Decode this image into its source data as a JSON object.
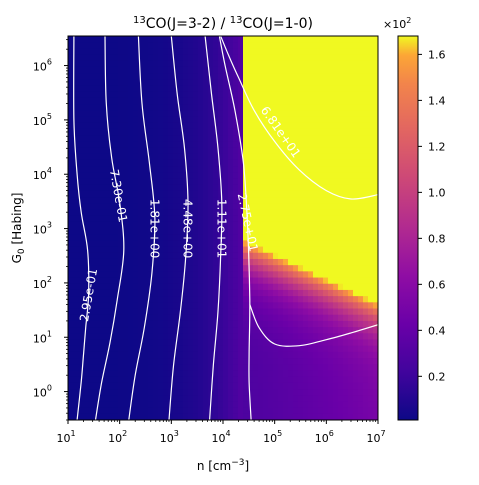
{
  "chart_data": {
    "type": "heatmap",
    "title_parts": {
      "sup1": "13",
      "mid": "CO(J=3-2) / ",
      "sup2": "13",
      "end": "CO(J=1-0)"
    },
    "xlabel_parts": {
      "base": "n [cm",
      "sup": "−3",
      "end": "]"
    },
    "ylabel_parts": {
      "base": "G",
      "sub": "0",
      "end": " [Habing]"
    },
    "x_scale": "log",
    "y_scale": "log",
    "xlim": [
      10,
      10000000
    ],
    "ylim": [
      0.3,
      3500000
    ],
    "x_ticks": [
      {
        "value": 10,
        "base": "10",
        "exp": "1"
      },
      {
        "value": 100,
        "base": "10",
        "exp": "2"
      },
      {
        "value": 1000,
        "base": "10",
        "exp": "3"
      },
      {
        "value": 10000,
        "base": "10",
        "exp": "4"
      },
      {
        "value": 100000,
        "base": "10",
        "exp": "5"
      },
      {
        "value": 1000000,
        "base": "10",
        "exp": "6"
      },
      {
        "value": 10000000,
        "base": "10",
        "exp": "7"
      }
    ],
    "y_ticks": [
      {
        "value": 1,
        "base": "10",
        "exp": "0"
      },
      {
        "value": 10,
        "base": "10",
        "exp": "1"
      },
      {
        "value": 100,
        "base": "10",
        "exp": "2"
      },
      {
        "value": 1000,
        "base": "10",
        "exp": "3"
      },
      {
        "value": 10000,
        "base": "10",
        "exp": "4"
      },
      {
        "value": 100000,
        "base": "10",
        "exp": "5"
      },
      {
        "value": 1000000,
        "base": "10",
        "exp": "6"
      }
    ],
    "colormap": "plasma",
    "colorbar": {
      "range": [
        1,
        168
      ],
      "multiplier_base": "×10",
      "multiplier_exp": "2",
      "tick_values": [
        20,
        40,
        60,
        80,
        100,
        120,
        140,
        160
      ],
      "tick_labels": [
        "0.2",
        "0.4",
        "0.6",
        "0.8",
        "1.0",
        "1.2",
        "1.4",
        "1.6"
      ]
    },
    "contours": [
      {
        "label": "2.95e-01",
        "level": 0.295,
        "points": [
          [
            15.0,
            0.3
          ],
          [
            18.0,
            1.5
          ],
          [
            20.0,
            5
          ],
          [
            22.0,
            15
          ],
          [
            25.0,
            60
          ],
          [
            24.0,
            400
          ],
          [
            18.0,
            2000
          ],
          [
            15.0,
            10000
          ],
          [
            13.0,
            100000
          ],
          [
            13.0,
            3500000
          ]
        ]
      },
      {
        "label": "7.30e-01",
        "level": 0.73,
        "points": [
          [
            34.0,
            0.3
          ],
          [
            45.0,
            1.5
          ],
          [
            65.0,
            8
          ],
          [
            90.0,
            50
          ],
          [
            120.0,
            400
          ],
          [
            100.0,
            3000
          ],
          [
            70.0,
            20000
          ],
          [
            55.0,
            200000
          ],
          [
            52.0,
            3500000
          ]
        ]
      },
      {
        "label": "1.81e+00",
        "level": 1.81,
        "points": [
          [
            150.0,
            0.3
          ],
          [
            200.0,
            2
          ],
          [
            300.0,
            15
          ],
          [
            420.0,
            150
          ],
          [
            480.0,
            1500
          ],
          [
            380.0,
            15000
          ],
          [
            270.0,
            200000
          ],
          [
            230.0,
            3500000
          ]
        ]
      },
      {
        "label": "4.48e+00",
        "level": 4.48,
        "points": [
          [
            900.0,
            0.3
          ],
          [
            1100.0,
            3
          ],
          [
            1500.0,
            30
          ],
          [
            1900.0,
            300
          ],
          [
            2100.0,
            3000
          ],
          [
            1800.0,
            30000
          ],
          [
            1300.0,
            300000
          ],
          [
            1000.0,
            3500000
          ]
        ]
      },
      {
        "label": "1.11e+01",
        "level": 11.1,
        "points": [
          [
            5500.0,
            0.3
          ],
          [
            6500.0,
            3
          ],
          [
            8000.0,
            30
          ],
          [
            9000.0,
            300
          ],
          [
            9500.0,
            3000
          ],
          [
            8000.0,
            30000
          ],
          [
            6000.0,
            300000
          ],
          [
            4500.0,
            3500000
          ]
        ]
      },
      {
        "label": "2.75e+01",
        "level": 27.5,
        "points": [
          [
            35000.0,
            0.3
          ],
          [
            32000.0,
            1.5
          ],
          [
            32000.0,
            5
          ],
          [
            33000.0,
            50
          ],
          [
            30000.0,
            1000
          ],
          [
            25000.0,
            15000
          ],
          [
            17000.0,
            150000
          ],
          [
            11000.0,
            1000000
          ],
          [
            8500.0,
            3500000
          ]
        ]
      },
      {
        "label": "",
        "level": 27.5,
        "points": [
          [
            33000.0,
            40
          ],
          [
            50000.0,
            15
          ],
          [
            100000.0,
            7.5
          ],
          [
            300000.0,
            7
          ],
          [
            1000000.0,
            9
          ],
          [
            3000000.0,
            12
          ],
          [
            10000000.0,
            17
          ]
        ]
      },
      {
        "label": "6.81e+01",
        "level": 68.1,
        "points": [
          [
            9000.0,
            3500000
          ],
          [
            13000.0,
            1500000
          ],
          [
            20000.0,
            600000
          ],
          [
            40000.0,
            150000
          ],
          [
            100000.0,
            40000
          ],
          [
            300000.0,
            12000
          ],
          [
            1000000.0,
            5000
          ],
          [
            3000000.0,
            3500
          ],
          [
            10000000.0,
            4200
          ]
        ]
      }
    ],
    "contour_labels": [
      {
        "text": "2.95e-01",
        "x": 25,
        "y": 60,
        "angle": -80
      },
      {
        "text": "7.30e-01",
        "x": 95,
        "y": 4000,
        "angle": 80
      },
      {
        "text": "1.81e+00",
        "x": 470,
        "y": 1000,
        "angle": 90
      },
      {
        "text": "4.48e+00",
        "x": 2050,
        "y": 1000,
        "angle": 90
      },
      {
        "text": "1.11e+01",
        "x": 9400,
        "y": 1000,
        "angle": 90
      },
      {
        "text": "2.75e+01",
        "x": 30000,
        "y": 1300,
        "angle": 78
      },
      {
        "text": "6.81e+01",
        "x": 130000,
        "y": 60000,
        "angle": 55
      }
    ]
  }
}
